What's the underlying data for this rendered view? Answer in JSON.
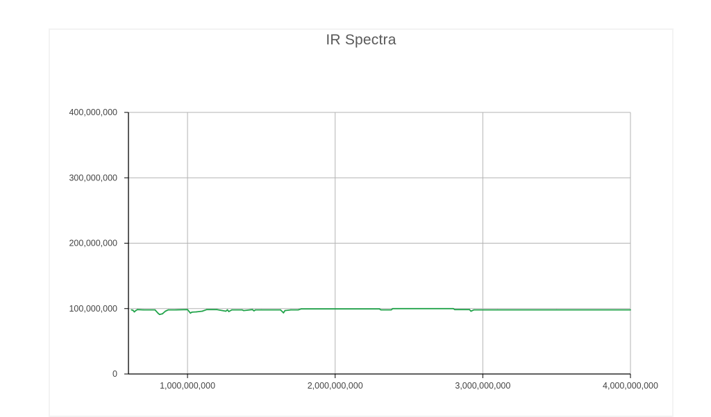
{
  "chart_data": {
    "type": "line",
    "title": "IR Spectra",
    "xlabel": "",
    "ylabel": "",
    "xlim": [
      600000000,
      4000000000
    ],
    "ylim": [
      0,
      400000000
    ],
    "x_ticks": [
      1000000000,
      2000000000,
      3000000000,
      4000000000
    ],
    "y_ticks": [
      0,
      100000000,
      200000000,
      300000000,
      400000000
    ],
    "x_tick_labels": [
      "1,000,000,000",
      "2,000,000,000",
      "3,000,000,000",
      "4,000,000,000"
    ],
    "y_tick_labels": [
      "0",
      "100,000,000",
      "200,000,000",
      "300,000,000",
      "400,000,000"
    ],
    "grid": true,
    "legend": "none",
    "series": [
      {
        "color": "#21a34a",
        "x": [
          620000000,
          630000000,
          640000000,
          650000000,
          660000000,
          700000000,
          780000000,
          800000000,
          810000000,
          830000000,
          850000000,
          870000000,
          920000000,
          1000000000,
          1020000000,
          1030000000,
          1060000000,
          1100000000,
          1130000000,
          1200000000,
          1260000000,
          1270000000,
          1280000000,
          1300000000,
          1370000000,
          1380000000,
          1440000000,
          1450000000,
          1460000000,
          1500000000,
          1630000000,
          1650000000,
          1660000000,
          1700000000,
          1750000000,
          1770000000,
          2000000000,
          2300000000,
          2310000000,
          2380000000,
          2390000000,
          2800000000,
          2810000000,
          2910000000,
          2920000000,
          2940000000,
          3100000000,
          3500000000,
          4000000000
        ],
        "y": [
          98000000,
          97500000,
          95000000,
          97000000,
          98500000,
          98000000,
          98000000,
          93000000,
          91000000,
          92000000,
          96000000,
          98000000,
          98000000,
          98500000,
          93000000,
          94500000,
          95000000,
          96000000,
          98500000,
          98500000,
          96000000,
          98000000,
          95500000,
          98000000,
          98000000,
          97000000,
          98500000,
          96500000,
          98000000,
          98000000,
          98000000,
          93500000,
          97000000,
          98000000,
          98000000,
          99500000,
          99500000,
          99500000,
          98000000,
          98000000,
          100000000,
          100000000,
          98500000,
          98500000,
          96000000,
          98000000,
          98000000,
          98000000,
          98000000
        ]
      }
    ]
  }
}
